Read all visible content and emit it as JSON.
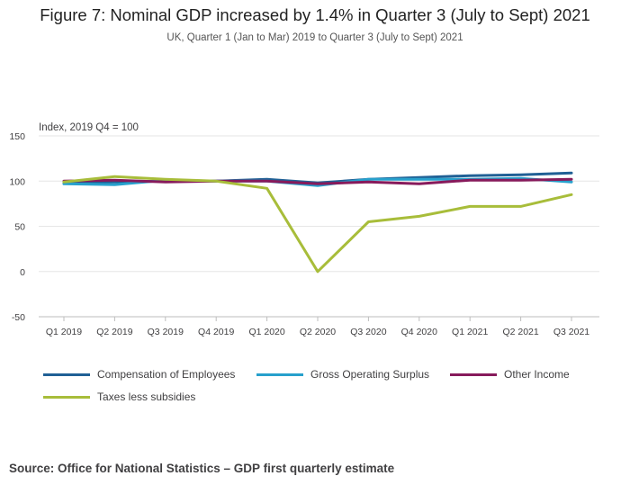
{
  "header": {
    "title": "Figure 7: Nominal GDP increased by 1.4% in Quarter 3 (July to Sept) 2021",
    "subtitle": "UK, Quarter 1 (Jan to Mar) 2019 to Quarter 3 (July to Sept) 2021"
  },
  "footer": {
    "source": "Source: Office for National Statistics – GDP first quarterly estimate"
  },
  "chart_data": {
    "type": "line",
    "title": "Figure 7: Nominal GDP increased by 1.4% in Quarter 3 (July to Sept) 2021",
    "subtitle": "UK, Quarter 1 (Jan to Mar) 2019 to Quarter 3 (July to Sept) 2021",
    "ylabel": "Index, 2019 Q4 = 100",
    "xlabel": "",
    "ylim": [
      -50,
      150
    ],
    "yticks": [
      150,
      100,
      50,
      0,
      -50
    ],
    "grid": true,
    "legend_position": "bottom",
    "categories": [
      "Q1 2019",
      "Q2 2019",
      "Q3 2019",
      "Q4 2019",
      "Q1 2020",
      "Q2 2020",
      "Q3 2020",
      "Q4 2020",
      "Q1 2021",
      "Q2 2021",
      "Q3 2021"
    ],
    "series": [
      {
        "name": "Compensation of Employees",
        "color": "#206095",
        "values": [
          98,
          99,
          100,
          100,
          102,
          98,
          102,
          104,
          106,
          107,
          109
        ]
      },
      {
        "name": "Gross Operating Surplus",
        "color": "#27a0cc",
        "values": [
          97,
          96,
          101,
          100,
          100,
          95,
          102,
          102,
          102,
          103,
          99
        ]
      },
      {
        "name": "Other Income",
        "color": "#871a5b",
        "values": [
          100,
          101,
          99,
          100,
          100,
          97,
          99,
          97,
          101,
          101,
          102
        ]
      },
      {
        "name": "Taxes less subsidies",
        "color": "#a8bd3a",
        "values": [
          99,
          105,
          102,
          100,
          92,
          0,
          55,
          61,
          72,
          72,
          85
        ]
      }
    ]
  }
}
